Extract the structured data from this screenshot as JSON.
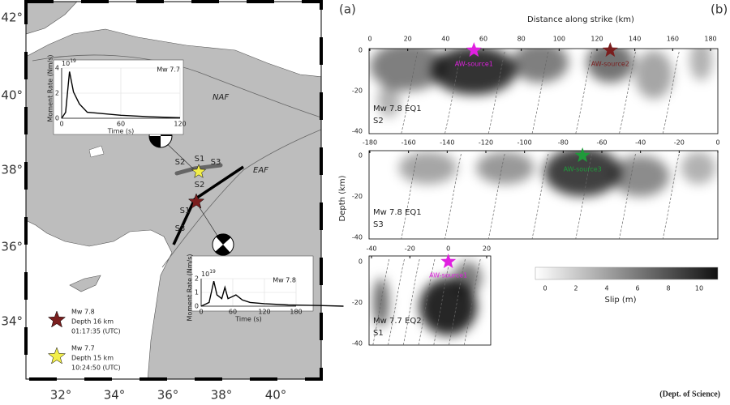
{
  "figure_labels": {
    "a": "(a)",
    "b": "(b)"
  },
  "map": {
    "lat_labels": [
      "42°",
      "40°",
      "38°",
      "36°",
      "34°"
    ],
    "lon_labels": [
      "32°",
      "34°",
      "36°",
      "38°",
      "40°"
    ],
    "faults": {
      "naf": "NAF",
      "eaf": "EAF"
    },
    "segments_north": [
      "S2",
      "S1",
      "S3"
    ],
    "segments_east": [
      "S2",
      "S1",
      "S3"
    ]
  },
  "insets": [
    {
      "scale": {
        "base": "10",
        "exponent": "19"
      },
      "magnitude": "Mw 7.7",
      "y_title": "Moment Rate (Nm/s)",
      "x_title": "Time (s)",
      "xticks": [
        0,
        60,
        120
      ],
      "yticks": [
        0,
        2,
        4
      ]
    },
    {
      "scale": {
        "base": "10",
        "exponent": "19"
      },
      "magnitude": "Mw 7.8",
      "y_title": "Moment Rate (Nm/s)",
      "x_title": "Time (s)",
      "xticks": [
        0,
        60,
        120,
        180
      ],
      "yticks": [
        0,
        1,
        2
      ]
    }
  ],
  "legend": [
    {
      "magnitude": "Mw 7.8",
      "depth": "Depth 16 km",
      "time": "01:17:35 (UTC)",
      "color": "#7a1e1e"
    },
    {
      "magnitude": "Mw 7.7",
      "depth": "Depth 15 km",
      "time": "10:24:50 (UTC)",
      "color": "#f2ee4a"
    }
  ],
  "slip": {
    "x_title": "Distance along strike (km)",
    "y_title": "Depth (km)",
    "panels": [
      {
        "event": "Mw 7.8 EQ1",
        "segment": "S2",
        "xticks": [
          0,
          20,
          40,
          60,
          80,
          100,
          120,
          140,
          160,
          180
        ],
        "yticks": [
          0,
          -20,
          -40
        ],
        "sources": [
          {
            "name": "AW-source1",
            "distance": 55,
            "color": "#e020e0"
          },
          {
            "name": "AW-source2",
            "distance": 127,
            "color": "#7a1e1e"
          }
        ]
      },
      {
        "event": "Mw 7.8 EQ1",
        "segment": "S3",
        "xticks": [
          -180,
          -160,
          -140,
          -120,
          -100,
          -80,
          -60,
          -40,
          -20,
          0
        ],
        "yticks": [
          0,
          -20,
          -40
        ],
        "sources": [
          {
            "name": "AW-source3",
            "distance": -70,
            "color": "#1f9a3a"
          }
        ]
      },
      {
        "event": "Mw 7.7 EQ2",
        "segment": "S1",
        "xticks": [
          -40,
          -20,
          0,
          20
        ],
        "yticks": [
          0,
          -20,
          -40
        ],
        "sources": [
          {
            "name": "AW-source1",
            "distance": 0,
            "color": "#e020e0"
          }
        ]
      }
    ],
    "colorbar": {
      "title": "Slip (m)",
      "ticks": [
        0,
        2,
        4,
        6,
        8,
        10
      ]
    }
  },
  "footer": "(Dept. of Science)"
}
